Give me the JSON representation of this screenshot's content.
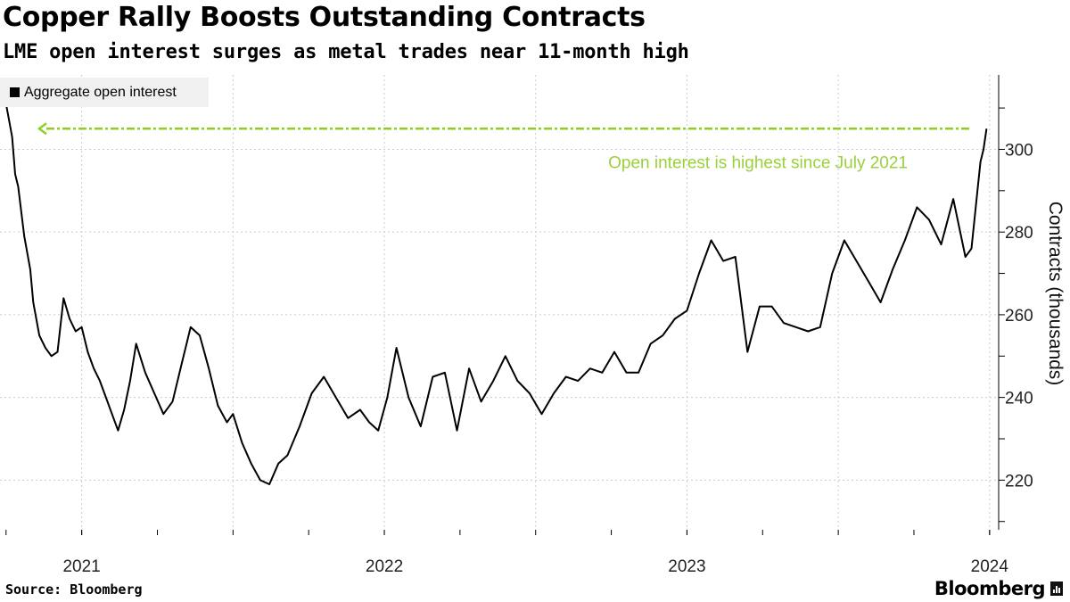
{
  "title": "Copper Rally Boosts Outstanding Contracts",
  "subtitle": "LME open interest surges as metal trades near 11-month high",
  "legend_label": "Aggregate open interest",
  "source": "Source: Bloomberg",
  "brand": "Bloomberg",
  "colors": {
    "line": "#000000",
    "annotation": "#8fce22",
    "grid": "#cccccc",
    "legend_bg": "#f0f0f0"
  },
  "chart_data": {
    "type": "line",
    "title": "Copper Rally Boosts Outstanding Contracts",
    "ylabel": "Contracts (thousands)",
    "xlabel": "",
    "ylim": [
      208,
      318
    ],
    "xlim": [
      2020.73,
      2024.03
    ],
    "yticks": [
      220,
      240,
      260,
      280,
      300
    ],
    "xticks": [
      {
        "value": 2021.0,
        "label": "2021"
      },
      {
        "value": 2022.0,
        "label": "2022"
      },
      {
        "value": 2023.0,
        "label": "2023"
      },
      {
        "value": 2024.0,
        "label": "2024"
      }
    ],
    "annotation": {
      "text": "Open interest is highest since July 2021",
      "y_value": 305
    },
    "series": [
      {
        "name": "Aggregate open interest",
        "x": [
          2020.75,
          2020.76,
          2020.77,
          2020.78,
          2020.79,
          2020.8,
          2020.81,
          2020.83,
          2020.84,
          2020.86,
          2020.88,
          2020.9,
          2020.92,
          2020.94,
          2020.96,
          2020.98,
          2021.0,
          2021.02,
          2021.04,
          2021.06,
          2021.08,
          2021.1,
          2021.12,
          2021.14,
          2021.16,
          2021.18,
          2021.21,
          2021.24,
          2021.27,
          2021.3,
          2021.33,
          2021.36,
          2021.39,
          2021.42,
          2021.45,
          2021.48,
          2021.5,
          2021.53,
          2021.56,
          2021.59,
          2021.62,
          2021.65,
          2021.68,
          2021.72,
          2021.76,
          2021.8,
          2021.84,
          2021.88,
          2021.92,
          2021.95,
          2021.98,
          2022.01,
          2022.04,
          2022.08,
          2022.12,
          2022.16,
          2022.2,
          2022.24,
          2022.28,
          2022.32,
          2022.36,
          2022.4,
          2022.44,
          2022.48,
          2022.52,
          2022.56,
          2022.6,
          2022.64,
          2022.68,
          2022.72,
          2022.76,
          2022.8,
          2022.84,
          2022.88,
          2022.92,
          2022.96,
          2023.0,
          2023.04,
          2023.08,
          2023.12,
          2023.16,
          2023.2,
          2023.24,
          2023.28,
          2023.32,
          2023.36,
          2023.4,
          2023.44,
          2023.48,
          2023.52,
          2023.56,
          2023.6,
          2023.64,
          2023.68,
          2023.72,
          2023.76,
          2023.8,
          2023.84,
          2023.88,
          2023.92,
          2023.94,
          2023.96,
          2023.97,
          2023.98,
          2023.99
        ],
        "values": [
          311,
          307,
          303,
          294,
          291,
          285,
          279,
          271,
          263,
          255,
          252,
          250,
          251,
          264,
          259,
          256,
          257,
          251,
          247,
          244,
          240,
          236,
          232,
          237,
          244,
          253,
          246,
          241,
          236,
          239,
          248,
          257,
          255,
          247,
          238,
          234,
          236,
          229,
          224,
          220,
          219,
          224,
          226,
          233,
          241,
          245,
          240,
          235,
          237,
          234,
          232,
          240,
          252,
          240,
          233,
          245,
          246,
          232,
          247,
          239,
          244,
          250,
          244,
          241,
          236,
          241,
          245,
          244,
          247,
          246,
          251,
          246,
          246,
          253,
          255,
          259,
          261,
          270,
          278,
          273,
          274,
          251,
          262,
          262,
          258,
          257,
          256,
          257,
          270,
          278,
          273,
          268,
          263,
          271,
          278,
          286,
          283,
          277,
          288,
          274,
          276,
          290,
          297,
          300,
          305
        ]
      }
    ]
  }
}
